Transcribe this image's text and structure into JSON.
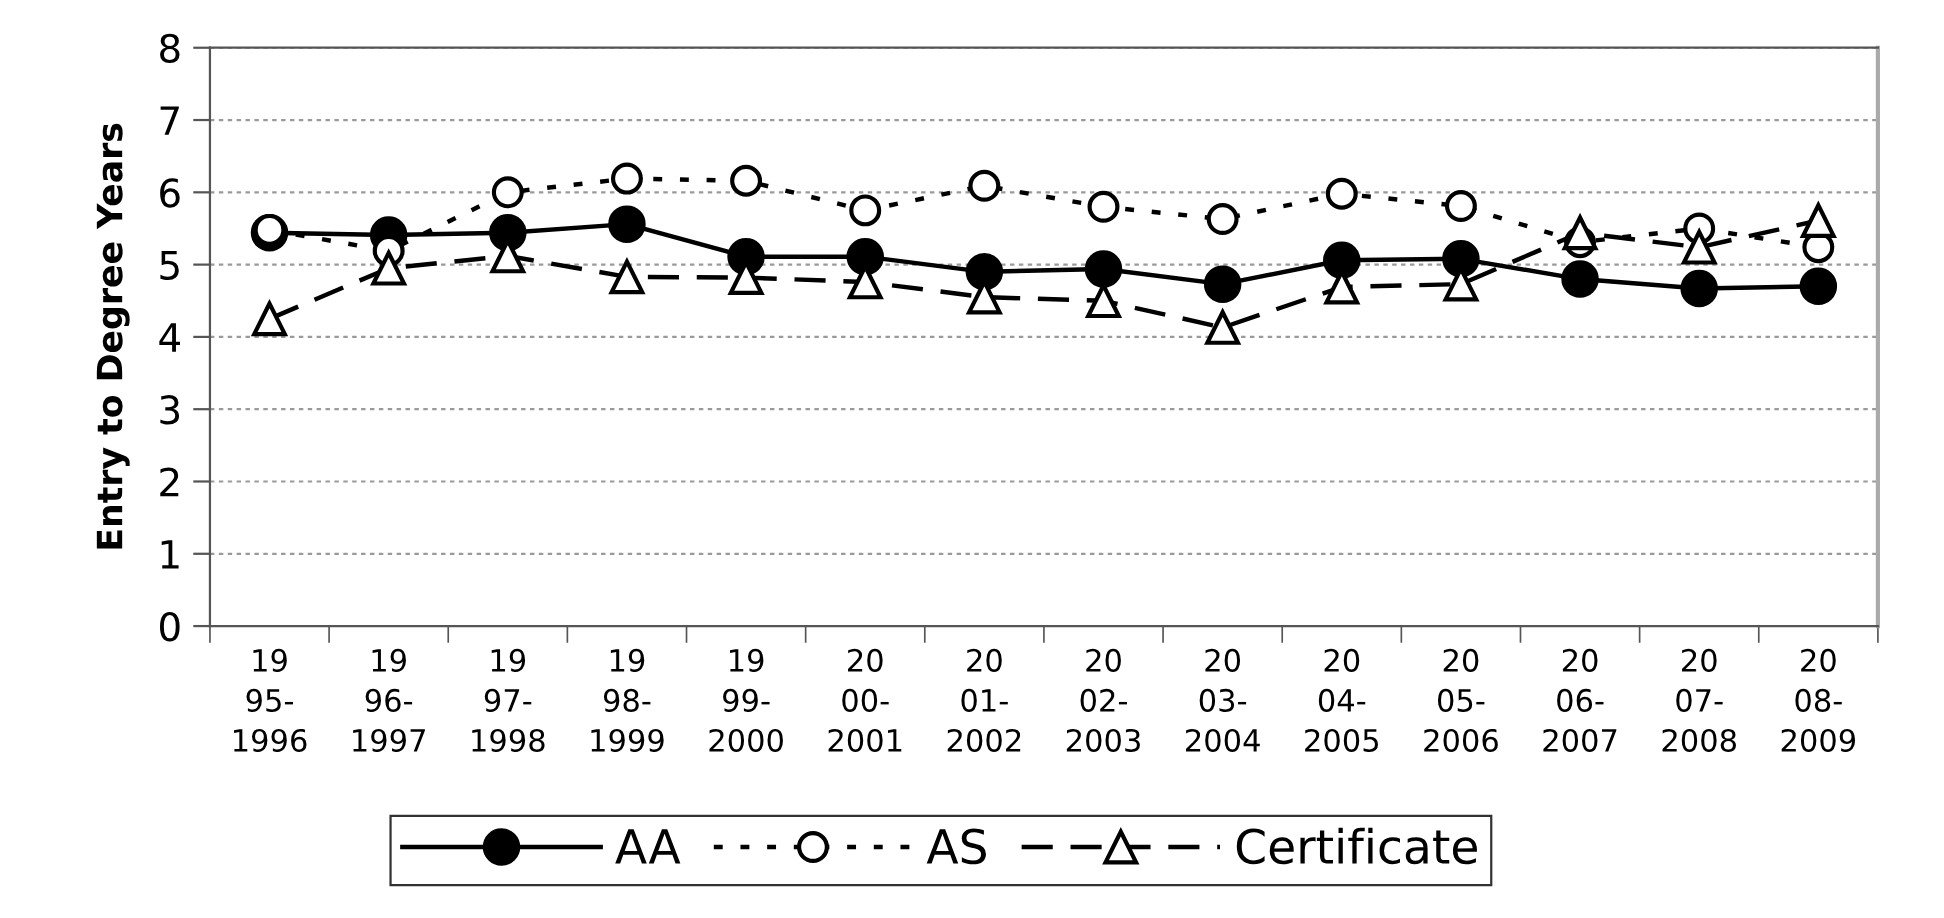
{
  "chart_data": {
    "type": "line",
    "ylabel": "Entry to Degree Years",
    "categories": [
      "19\n95-\n1996",
      "19\n96-\n1997",
      "19\n97-\n1998",
      "19\n98-\n1999",
      "19\n99-\n2000",
      "20\n00-\n2001",
      "20\n01-\n2002",
      "20\n02-\n2003",
      "20\n03-\n2004",
      "20\n04-\n2005",
      "20\n05-\n2006",
      "20\n06-\n2007",
      "20\n07-\n2008",
      "20\n08-\n2009"
    ],
    "series": [
      {
        "name": "AA",
        "color": "#000000",
        "marker": "circle",
        "line_style": "solid",
        "values": [
          5.44,
          5.41,
          5.44,
          5.56,
          5.11,
          5.11,
          4.9,
          4.94,
          4.73,
          5.06,
          5.08,
          4.8,
          4.67,
          4.7
        ]
      },
      {
        "name": "AS",
        "color": "#000000",
        "marker": "circle",
        "line_style": "dotted",
        "values": [
          5.48,
          5.19,
          6.0,
          6.19,
          6.16,
          5.75,
          6.09,
          5.8,
          5.63,
          5.98,
          5.81,
          5.31,
          5.5,
          5.24
        ]
      },
      {
        "name": "Certificate",
        "color": "#000000",
        "marker": "triangle",
        "line_style": "dashed",
        "values": [
          4.25,
          4.95,
          5.12,
          4.83,
          4.82,
          4.76,
          4.55,
          4.5,
          4.13,
          4.69,
          4.73,
          5.44,
          5.24,
          5.61
        ]
      }
    ],
    "ylim": [
      0,
      8
    ],
    "yticks": [
      0,
      1,
      2,
      3,
      4,
      5,
      6,
      7,
      8
    ],
    "grid": "y",
    "legend": "bottom"
  }
}
